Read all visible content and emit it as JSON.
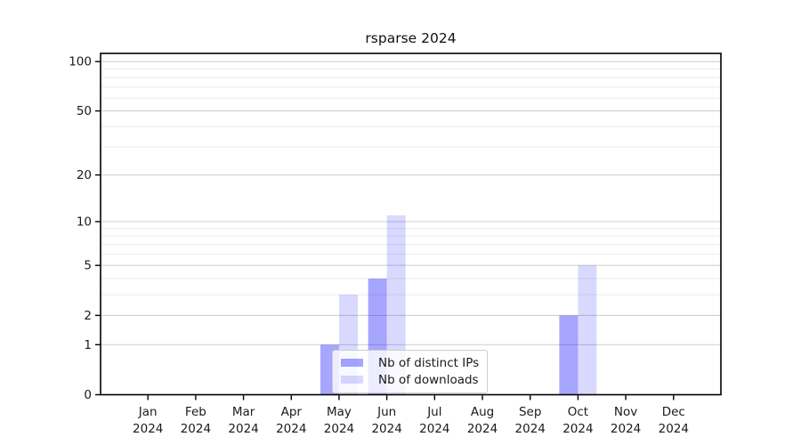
{
  "chart_data": {
    "type": "bar",
    "title": "rsparse 2024",
    "categories": [
      {
        "month": "Jan",
        "year": "2024"
      },
      {
        "month": "Feb",
        "year": "2024"
      },
      {
        "month": "Mar",
        "year": "2024"
      },
      {
        "month": "Apr",
        "year": "2024"
      },
      {
        "month": "May",
        "year": "2024"
      },
      {
        "month": "Jun",
        "year": "2024"
      },
      {
        "month": "Jul",
        "year": "2024"
      },
      {
        "month": "Aug",
        "year": "2024"
      },
      {
        "month": "Sep",
        "year": "2024"
      },
      {
        "month": "Oct",
        "year": "2024"
      },
      {
        "month": "Nov",
        "year": "2024"
      },
      {
        "month": "Dec",
        "year": "2024"
      }
    ],
    "series": [
      {
        "name": "Nb of distinct IPs",
        "color": "rgba(0,0,255,0.35)",
        "values": [
          0,
          0,
          0,
          0,
          1,
          4,
          0,
          0,
          0,
          2,
          0,
          0
        ]
      },
      {
        "name": "Nb of downloads",
        "color": "rgba(0,0,255,0.15)",
        "values": [
          0,
          0,
          0,
          0,
          3,
          11,
          0,
          0,
          0,
          5,
          0,
          0
        ]
      }
    ],
    "y_scale": "log1p",
    "y_ticks": [
      0,
      1,
      2,
      5,
      10,
      20,
      50,
      100
    ],
    "y_minor_gridlines": [
      3,
      4,
      6,
      7,
      8,
      9,
      30,
      40,
      60,
      70,
      80,
      90
    ],
    "ylim": [
      0,
      113
    ],
    "xlabel": "",
    "ylabel": "",
    "grid": true,
    "legend_position": "lower center",
    "colors": {
      "grid_major": "#cccccc",
      "grid_minor": "#ebebeb",
      "axis": "#000000",
      "text": "#1a1a1a"
    }
  }
}
